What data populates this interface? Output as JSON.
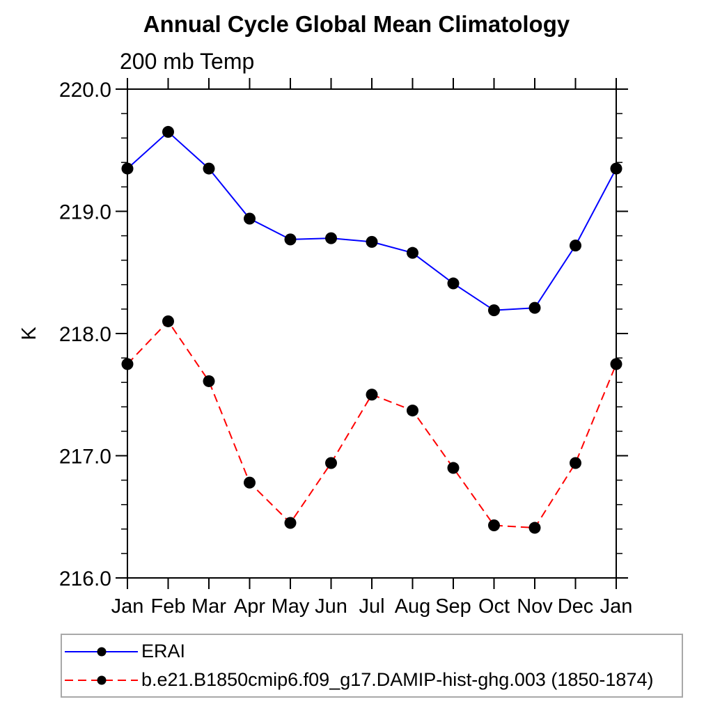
{
  "chart_data": {
    "type": "line",
    "title": "Annual Cycle Global Mean Climatology",
    "subtitle": "200 mb Temp",
    "ylabel": "K",
    "xlabel": "",
    "categories": [
      "Jan",
      "Feb",
      "Mar",
      "Apr",
      "May",
      "Jun",
      "Jul",
      "Aug",
      "Sep",
      "Oct",
      "Nov",
      "Dec",
      "Jan"
    ],
    "series": [
      {
        "name": "ERAI",
        "color": "#0000ff",
        "dash": "solid",
        "marker": "filled-circle",
        "marker_color": "#000000",
        "values": [
          219.35,
          219.65,
          219.35,
          218.94,
          218.77,
          218.78,
          218.75,
          218.66,
          218.41,
          218.19,
          218.21,
          218.72,
          219.35
        ]
      },
      {
        "name": "b.e21.B1850cmip6.f09_g17.DAMIP-hist-ghg.003 (1850-1874)",
        "color": "#ff0000",
        "dash": "dashed",
        "marker": "filled-circle",
        "marker_color": "#000000",
        "values": [
          217.75,
          218.1,
          217.61,
          216.78,
          216.45,
          216.94,
          217.5,
          217.37,
          216.9,
          216.43,
          216.41,
          216.94,
          217.75
        ]
      }
    ],
    "ylim": [
      216.0,
      220.0
    ],
    "yticks": [
      216.0,
      217.0,
      218.0,
      219.0,
      220.0
    ],
    "ytick_labels": [
      "216.0",
      "217.0",
      "218.0",
      "219.0",
      "220.0"
    ],
    "y_minor_tick_interval": 0.2,
    "grid": false,
    "legend_position": "bottom-left-box",
    "axis_color": "#000000",
    "text_color": "#000000",
    "legend_border_color": "#a8a8a8"
  }
}
